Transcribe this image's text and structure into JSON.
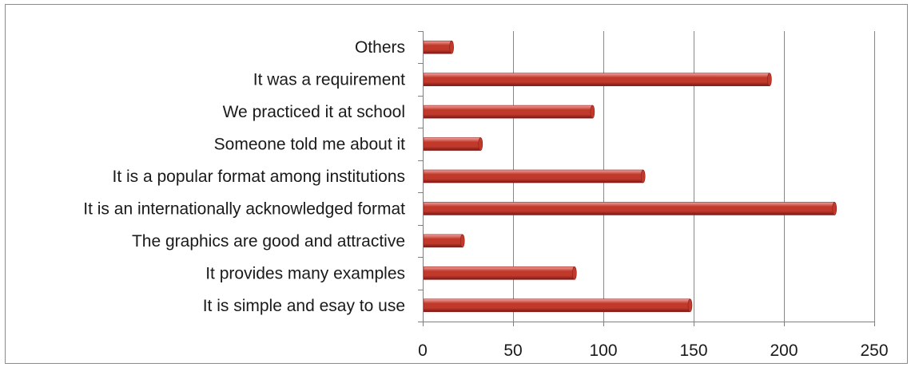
{
  "chart_data": {
    "type": "bar",
    "orientation": "horizontal",
    "categories": [
      "It is simple and esay to use",
      "It provides many examples",
      "The graphics are good and attractive",
      "It is an internationally acknowledged format",
      "It is a popular format among institutions",
      "Someone told me about it",
      "We practiced it at school",
      "It was a requirement",
      "Others"
    ],
    "values": [
      148,
      84,
      22,
      228,
      122,
      32,
      94,
      192,
      16
    ],
    "xlim": [
      0,
      250
    ],
    "xticks": [
      "0",
      "50",
      "100",
      "150",
      "200",
      "250"
    ],
    "xtick_values": [
      0,
      50,
      100,
      150,
      200,
      250
    ],
    "grid": "vertical",
    "legend": "none",
    "title": "",
    "xlabel": "",
    "ylabel": "",
    "bar_color": "#c0392b",
    "bar_highlight": "#f3a3a0",
    "bar_shadow": "#7a1616",
    "grid_color": "#888888",
    "axis_color": "#7f7f7f"
  }
}
